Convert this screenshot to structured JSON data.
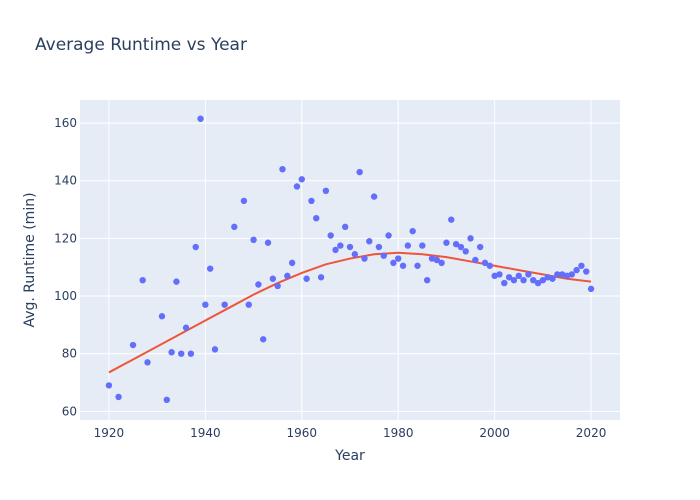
{
  "chart_data": {
    "type": "scatter",
    "title": "Average Runtime vs Year",
    "xlabel": "Year",
    "ylabel": "Avg. Runtime (min)",
    "xlim": [
      1914,
      2026
    ],
    "ylim": [
      57,
      168
    ],
    "x_ticks": [
      1920,
      1940,
      1960,
      1980,
      2000,
      2020
    ],
    "y_ticks": [
      60,
      80,
      100,
      120,
      140,
      160
    ],
    "grid": true,
    "legend": "none",
    "colors": {
      "points": "#636efa",
      "trend": "#ef553b",
      "plot_bg": "#e5ecf6",
      "grid": "#ffffff",
      "text": "#2a3f5f"
    },
    "series": [
      {
        "kind": "markers",
        "x": [
          1920,
          1922,
          1925,
          1927,
          1928,
          1931,
          1932,
          1933,
          1934,
          1935,
          1936,
          1937,
          1938,
          1939,
          1940,
          1941,
          1942,
          1944,
          1946,
          1948,
          1949,
          1950,
          1951,
          1952,
          1953,
          1954,
          1955,
          1956,
          1957,
          1958,
          1959,
          1960,
          1961,
          1962,
          1963,
          1964,
          1965,
          1966,
          1967,
          1968,
          1969,
          1970,
          1971,
          1972,
          1973,
          1974,
          1975,
          1976,
          1977,
          1978,
          1979,
          1980,
          1981,
          1982,
          1983,
          1984,
          1985,
          1986,
          1987,
          1988,
          1989,
          1990,
          1991,
          1992,
          1993,
          1994,
          1995,
          1996,
          1997,
          1998,
          1999,
          2000,
          2001,
          2002,
          2003,
          2004,
          2005,
          2006,
          2007,
          2008,
          2009,
          2010,
          2011,
          2012,
          2013,
          2014,
          2015,
          2016,
          2017,
          2018,
          2019,
          2020
        ],
        "y": [
          69,
          65,
          83,
          105.5,
          77,
          93,
          64,
          80.5,
          105,
          80,
          89,
          80,
          117,
          161.5,
          97,
          109.5,
          81.5,
          97,
          124,
          133,
          97,
          119.5,
          104,
          85,
          118.5,
          106,
          103.5,
          144,
          107,
          111.5,
          138,
          140.5,
          106,
          133,
          127,
          106.5,
          136.5,
          121,
          116,
          117.5,
          124,
          117,
          114.5,
          143,
          113,
          119,
          134.5,
          117,
          114,
          121,
          111.5,
          113,
          110.5,
          117.5,
          122.5,
          110.5,
          117.5,
          105.5,
          113,
          112.5,
          111.5,
          118.5,
          126.5,
          118,
          117,
          115.5,
          120,
          112.5,
          117,
          111.5,
          110.5,
          107,
          107.5,
          104.5,
          106.5,
          105.5,
          107,
          105.5,
          107.5,
          105.5,
          104.5,
          105.5,
          106.5,
          106,
          107.5,
          107.5,
          107,
          107.5,
          109,
          110.5,
          108.5,
          102.5
        ]
      },
      {
        "kind": "line",
        "x": [
          1920,
          1925,
          1930,
          1935,
          1940,
          1945,
          1950,
          1955,
          1960,
          1965,
          1970,
          1975,
          1980,
          1985,
          1990,
          1995,
          2000,
          2005,
          2010,
          2015,
          2020
        ],
        "y": [
          73.5,
          78,
          82.5,
          87,
          91.5,
          96,
          100.5,
          104.5,
          108,
          111,
          113,
          114.5,
          115,
          114.5,
          113.5,
          112,
          110.5,
          109,
          107.5,
          106,
          105
        ]
      }
    ]
  }
}
